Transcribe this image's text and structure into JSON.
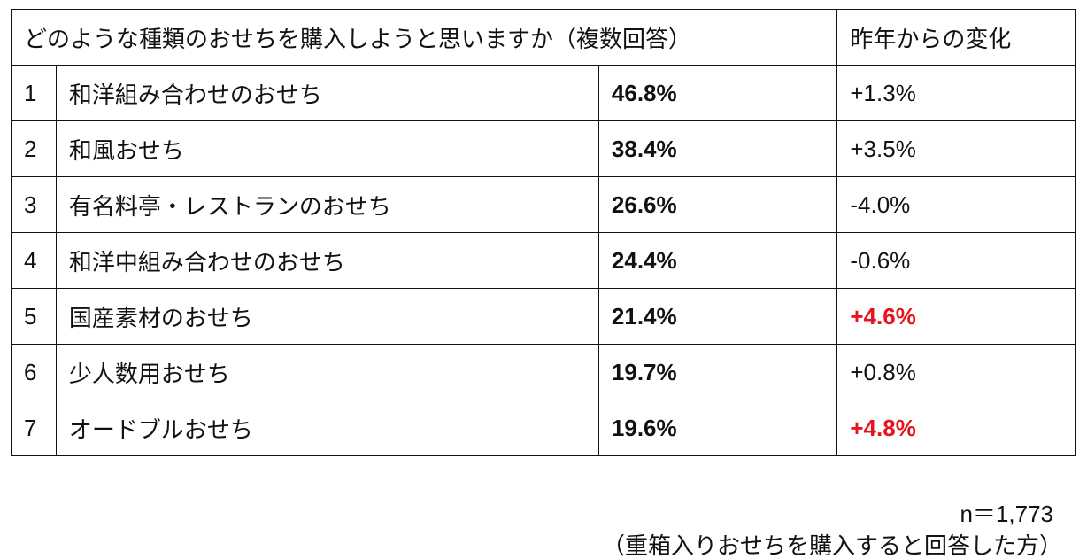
{
  "table": {
    "header": {
      "question": "どのような種類のおせちを購入しようと思いますか（複数回答）",
      "change": "昨年からの変化"
    },
    "rows": [
      {
        "rank": "1",
        "name": "和洋組み合わせのおせち",
        "share": "46.8%",
        "change": "+1.3%"
      },
      {
        "rank": "2",
        "name": "和風おせち",
        "share": "38.4%",
        "change": "+3.5%"
      },
      {
        "rank": "3",
        "name": "有名料亭・レストランのおせち",
        "share": "26.6%",
        "change": "-4.0%"
      },
      {
        "rank": "4",
        "name": "和洋中組み合わせのおせち",
        "share": "24.4%",
        "change": "-0.6%"
      },
      {
        "rank": "5",
        "name": "国産素材のおせち",
        "share": "21.4%",
        "change": "+4.6%",
        "change_color": "#e8141b"
      },
      {
        "rank": "6",
        "name": "少人数用おせち",
        "share": "19.7%",
        "change": "+0.8%"
      },
      {
        "rank": "7",
        "name": "オードブルおせち",
        "share": "19.6%",
        "change": "+4.8%",
        "change_color": "#e8141b"
      }
    ]
  },
  "footer": {
    "sample": "n＝1,773",
    "note": "（重箱入りおせちを購入すると回答した方）"
  }
}
